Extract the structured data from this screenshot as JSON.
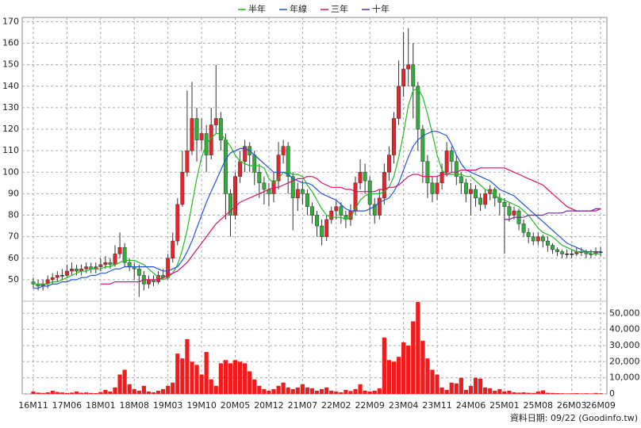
{
  "chart_data": [
    {
      "type": "candlestick",
      "categories": [
        "16M11",
        null,
        null,
        null,
        null,
        null,
        null,
        "17M06",
        null,
        null,
        null,
        null,
        null,
        null,
        "18M01",
        null,
        null,
        null,
        null,
        null,
        null,
        "18M08",
        null,
        null,
        null,
        null,
        null,
        null,
        "19M03",
        null,
        null,
        null,
        null,
        null,
        null,
        "19M10",
        null,
        null,
        null,
        null,
        null,
        null,
        "20M05",
        null,
        null,
        null,
        null,
        null,
        null,
        "20M12",
        null,
        null,
        null,
        null,
        null,
        null,
        "21M07",
        null,
        null,
        null,
        null,
        null,
        null,
        "22M02",
        null,
        null,
        null,
        null,
        null,
        null,
        "22M09",
        null,
        null,
        null,
        null,
        null,
        null,
        "23M04",
        null,
        null,
        null,
        null,
        null,
        null,
        "23M11",
        null,
        null,
        null,
        null,
        null,
        null,
        "24M06",
        null,
        null,
        null,
        null,
        null,
        null,
        "25M01",
        null,
        null,
        null,
        null,
        null,
        null,
        "25M08",
        null,
        null,
        null,
        null,
        null,
        null,
        "26M03",
        null,
        null,
        null,
        null,
        null,
        "26M09"
      ],
      "open": [
        49,
        48,
        47,
        48,
        50,
        51,
        52,
        52,
        54,
        55,
        54,
        55,
        56,
        55,
        56,
        57,
        58,
        57,
        62,
        65,
        58,
        56,
        55,
        52,
        48,
        50,
        49,
        52,
        51,
        60,
        68,
        85,
        100,
        110,
        125,
        115,
        118,
        108,
        122,
        125,
        115,
        90,
        80,
        98,
        105,
        112,
        108,
        100,
        95,
        92,
        90,
        96,
        108,
        112,
        98,
        88,
        92,
        90,
        84,
        80,
        75,
        70,
        78,
        82,
        84,
        80,
        78,
        82,
        95,
        100,
        96,
        85,
        80,
        88,
        100,
        108,
        125,
        140,
        148,
        150,
        140,
        120,
        105,
        95,
        90,
        95,
        100,
        110,
        105,
        98,
        95,
        90,
        92,
        88,
        85,
        90,
        92,
        88,
        86,
        84,
        80,
        82,
        76,
        72,
        70,
        68,
        70,
        68,
        66,
        64,
        63,
        62,
        62,
        62,
        63,
        63,
        62,
        62,
        63
      ],
      "high": [
        51,
        50,
        50,
        52,
        53,
        54,
        55,
        57,
        58,
        57,
        57,
        58,
        58,
        58,
        60,
        61,
        60,
        66,
        72,
        67,
        60,
        58,
        57,
        54,
        52,
        52,
        54,
        55,
        62,
        72,
        88,
        110,
        138,
        142,
        130,
        125,
        122,
        130,
        150,
        128,
        118,
        92,
        100,
        110,
        115,
        114,
        110,
        104,
        98,
        95,
        100,
        114,
        115,
        114,
        100,
        95,
        96,
        92,
        86,
        82,
        78,
        80,
        84,
        87,
        86,
        82,
        85,
        98,
        106,
        104,
        98,
        88,
        92,
        104,
        112,
        128,
        152,
        165,
        167,
        160,
        142,
        122,
        108,
        98,
        98,
        104,
        114,
        112,
        108,
        100,
        97,
        95,
        94,
        90,
        92,
        94,
        93,
        90,
        88,
        86,
        84,
        83,
        78,
        74,
        72,
        72,
        71,
        70,
        67,
        65,
        64,
        64,
        64,
        65,
        65,
        64,
        64,
        65,
        65
      ],
      "low": [
        46,
        45,
        45,
        46,
        48,
        49,
        50,
        51,
        52,
        52,
        52,
        53,
        53,
        53,
        54,
        55,
        55,
        56,
        60,
        56,
        54,
        50,
        42,
        45,
        46,
        47,
        48,
        50,
        50,
        58,
        66,
        84,
        98,
        108,
        105,
        110,
        100,
        106,
        118,
        110,
        78,
        70,
        78,
        95,
        100,
        100,
        94,
        88,
        85,
        84,
        86,
        92,
        104,
        90,
        73,
        82,
        85,
        80,
        76,
        70,
        66,
        68,
        76,
        78,
        76,
        74,
        75,
        80,
        92,
        90,
        80,
        76,
        78,
        85,
        96,
        104,
        122,
        135,
        140,
        125,
        110,
        95,
        88,
        86,
        87,
        92,
        98,
        100,
        94,
        90,
        86,
        80,
        84,
        82,
        83,
        87,
        84,
        80,
        62,
        77,
        78,
        73,
        70,
        67,
        66,
        66,
        65,
        63,
        62,
        61,
        60,
        60,
        60,
        61,
        61,
        60,
        60,
        61,
        61
      ],
      "close": [
        48,
        47,
        48,
        50,
        51,
        52,
        52,
        54,
        55,
        54,
        55,
        56,
        55,
        56,
        57,
        58,
        57,
        62,
        65,
        58,
        56,
        55,
        52,
        48,
        50,
        49,
        52,
        51,
        60,
        68,
        85,
        100,
        110,
        125,
        115,
        118,
        108,
        122,
        125,
        115,
        90,
        80,
        98,
        105,
        112,
        108,
        100,
        95,
        92,
        90,
        96,
        108,
        112,
        98,
        88,
        92,
        90,
        84,
        80,
        75,
        70,
        78,
        82,
        84,
        80,
        78,
        82,
        95,
        100,
        96,
        85,
        80,
        88,
        100,
        108,
        125,
        140,
        148,
        150,
        140,
        120,
        105,
        95,
        90,
        95,
        100,
        110,
        105,
        98,
        95,
        90,
        92,
        88,
        85,
        90,
        92,
        88,
        86,
        84,
        80,
        82,
        76,
        72,
        70,
        68,
        70,
        68,
        66,
        64,
        63,
        62,
        62,
        62,
        63,
        63,
        62,
        62,
        63,
        63
      ],
      "up_color": "#e8242a",
      "down_color": "#2fae3a",
      "flat_color": "#000000",
      "series": [
        {
          "name": "半年",
          "color": "#22bb22",
          "values": [
            48,
            48,
            48,
            48,
            49,
            49,
            50,
            51,
            52,
            53,
            54,
            54,
            55,
            55,
            55,
            56,
            56,
            57,
            58,
            59,
            59,
            59,
            58,
            57,
            55,
            53,
            51,
            50,
            51,
            53,
            57,
            64,
            73,
            85,
            97,
            107,
            113,
            116,
            118,
            118,
            115,
            112,
            108,
            105,
            104,
            103,
            103,
            103,
            102,
            97,
            95,
            97,
            100,
            100,
            99,
            99,
            98,
            94,
            91,
            87,
            83,
            80,
            79,
            79,
            79,
            78,
            79,
            83,
            87,
            89,
            90,
            90,
            90,
            91,
            93,
            98,
            107,
            118,
            131,
            138,
            139,
            135,
            127,
            118,
            108,
            101,
            99,
            99,
            99,
            99,
            98,
            98,
            96,
            94,
            92,
            91,
            89,
            88,
            87,
            86,
            85,
            84,
            82,
            80,
            77,
            74,
            72,
            71,
            70,
            68,
            66,
            65,
            64,
            63,
            63,
            63,
            62,
            62,
            62
          ]
        },
        {
          "name": "年線",
          "color": "#2255dd",
          "values": [
            46,
            46,
            47,
            47,
            48,
            48,
            49,
            49,
            50,
            50,
            51,
            51,
            52,
            52,
            53,
            53,
            54,
            55,
            55,
            56,
            56,
            56,
            56,
            56,
            56,
            56,
            55,
            54,
            54,
            55,
            56,
            59,
            63,
            68,
            74,
            80,
            86,
            91,
            96,
            101,
            106,
            109,
            110,
            111,
            111,
            110,
            108,
            106,
            104,
            102,
            100,
            100,
            100,
            99,
            97,
            96,
            95,
            95,
            94,
            92,
            90,
            89,
            88,
            87,
            85,
            83,
            82,
            82,
            82,
            82,
            83,
            84,
            86,
            87,
            88,
            91,
            95,
            101,
            107,
            112,
            115,
            117,
            118,
            119,
            119,
            118,
            117,
            113,
            108,
            104,
            101,
            100,
            99,
            98,
            97,
            96,
            94,
            92,
            91,
            90,
            89,
            87,
            85,
            83,
            81,
            79,
            77,
            75,
            73,
            71,
            69,
            67,
            66,
            65,
            64,
            63,
            63,
            63,
            63
          ]
        },
        {
          "name": "三年",
          "color": "#dd1166",
          "values": [
            null,
            null,
            null,
            null,
            null,
            null,
            null,
            null,
            null,
            null,
            null,
            null,
            null,
            null,
            48,
            48,
            48,
            49,
            49,
            49,
            49,
            49,
            49,
            50,
            50,
            50,
            50,
            51,
            52,
            53,
            54,
            56,
            58,
            61,
            64,
            67,
            70,
            73,
            76,
            78,
            80,
            82,
            84,
            86,
            87,
            88,
            89,
            90,
            91,
            92,
            93,
            93,
            94,
            95,
            96,
            97,
            97,
            98,
            98,
            97,
            95,
            94,
            93,
            93,
            93,
            92,
            92,
            91,
            91,
            91,
            91,
            91,
            92,
            92,
            93,
            93,
            94,
            96,
            98,
            99,
            99,
            98,
            98,
            98,
            98,
            99,
            99,
            100,
            100,
            101,
            101,
            101,
            101,
            102,
            102,
            102,
            102,
            102,
            102,
            101,
            100,
            99,
            98,
            97,
            96,
            95,
            94,
            92,
            90,
            88,
            86,
            84,
            83,
            82,
            82,
            82,
            82,
            82,
            83
          ]
        },
        {
          "name": "十年",
          "color": "#7722aa",
          "values": [
            null,
            null,
            null,
            null,
            null,
            null,
            null,
            null,
            null,
            null,
            null,
            null,
            null,
            null,
            null,
            null,
            null,
            null,
            null,
            null,
            null,
            null,
            null,
            null,
            null,
            null,
            null,
            null,
            null,
            null,
            null,
            null,
            null,
            null,
            null,
            null,
            null,
            null,
            null,
            null,
            null,
            null,
            null,
            null,
            null,
            null,
            null,
            null,
            null,
            null,
            null,
            null,
            null,
            null,
            null,
            null,
            null,
            null,
            null,
            null,
            null,
            null,
            null,
            null,
            null,
            null,
            null,
            null,
            null,
            null,
            null,
            null,
            null,
            null,
            null,
            null,
            null,
            null,
            null,
            null,
            null,
            null,
            null,
            null,
            null,
            null,
            null,
            null,
            null,
            null,
            null,
            null,
            null,
            null,
            null,
            null,
            null,
            null,
            78,
            78,
            79,
            79,
            79,
            80,
            80,
            80,
            80,
            81,
            81,
            81,
            81,
            82,
            82,
            82,
            82,
            82,
            82,
            83,
            83
          ]
        }
      ],
      "ylim": [
        40,
        172
      ],
      "yticks": [
        50,
        60,
        70,
        80,
        90,
        100,
        110,
        120,
        130,
        140,
        150,
        160,
        170
      ],
      "grid": true,
      "legend": "top"
    },
    {
      "type": "bar",
      "color": "#ee1c1c",
      "values": [
        1500,
        800,
        600,
        1000,
        2000,
        1200,
        900,
        600,
        800,
        1500,
        700,
        900,
        600,
        500,
        1200,
        2500,
        1500,
        4000,
        12000,
        15000,
        6000,
        3000,
        2000,
        5000,
        1500,
        1000,
        2000,
        3000,
        5000,
        7000,
        25000,
        22000,
        34000,
        20000,
        18000,
        12000,
        26000,
        9000,
        5000,
        19000,
        21000,
        19000,
        21000,
        20000,
        19000,
        14000,
        9000,
        5000,
        3000,
        2000,
        3000,
        5000,
        7000,
        4000,
        3000,
        4000,
        6000,
        4000,
        3500,
        2000,
        3000,
        4000,
        2000,
        1500,
        1000,
        2500,
        1800,
        3000,
        6000,
        2000,
        1500,
        2000,
        3500,
        35000,
        21000,
        20000,
        23000,
        32000,
        30000,
        45000,
        57000,
        33000,
        22000,
        15000,
        12000,
        4000,
        2500,
        7000,
        6500,
        10000,
        2500,
        5000,
        10000,
        9500,
        4000,
        3500,
        2000,
        3000,
        1500,
        2000,
        1000,
        800,
        1000,
        700,
        600,
        1500,
        2200,
        700,
        600,
        500,
        400,
        300,
        400,
        500,
        300,
        400,
        300,
        600,
        400
      ],
      "ylim": [
        0,
        57500
      ],
      "yticks": [
        0,
        {
          "value": 10000,
          "label": "10,000"
        },
        {
          "value": 20000,
          "label": "20,000"
        },
        {
          "value": 30000,
          "label": "30,000"
        },
        {
          "value": 40000,
          "label": "40,000"
        },
        {
          "value": 50000,
          "label": "50,000"
        }
      ]
    }
  ],
  "footer": "資料日期: 09/22 (Goodinfo.tw)"
}
